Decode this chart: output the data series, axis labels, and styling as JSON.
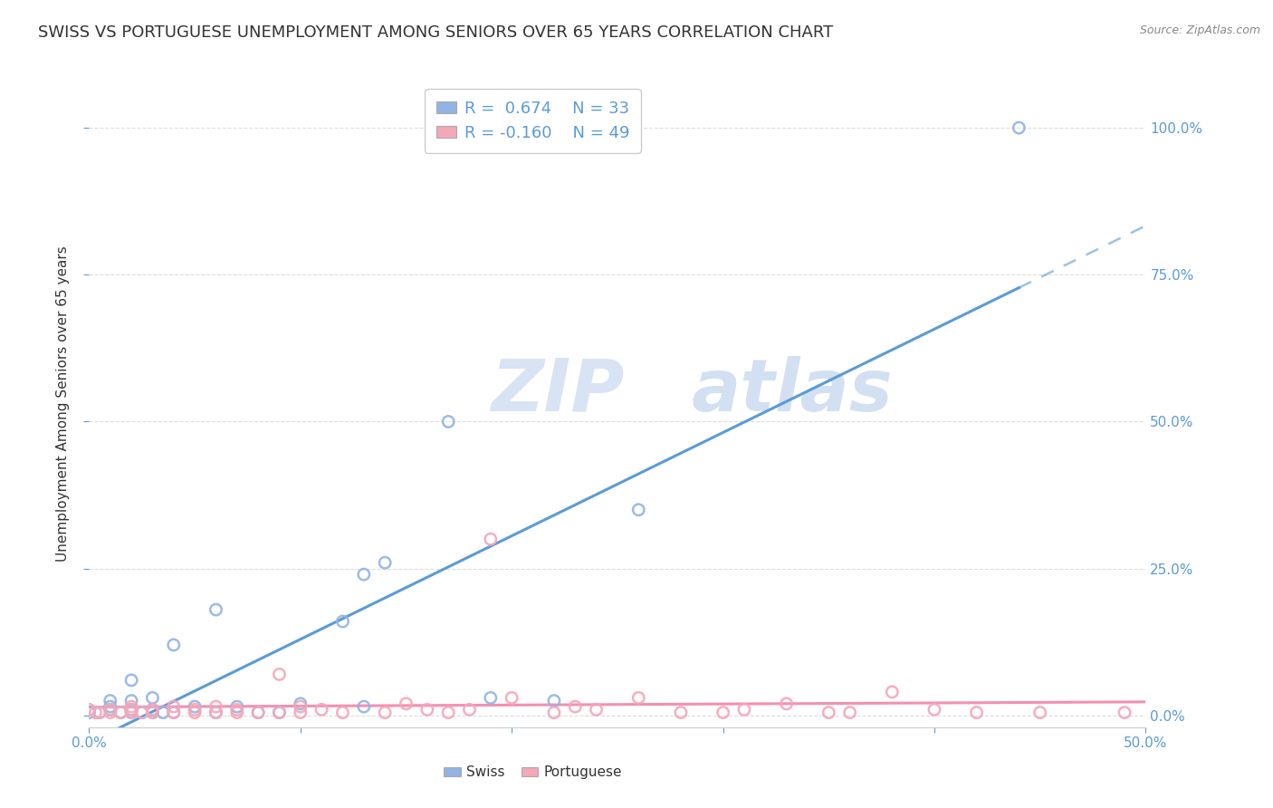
{
  "title": "SWISS VS PORTUGUESE UNEMPLOYMENT AMONG SENIORS OVER 65 YEARS CORRELATION CHART",
  "source": "Source: ZipAtlas.com",
  "ylabel": "Unemployment Among Seniors over 65 years",
  "xlim": [
    0.0,
    0.5
  ],
  "ylim": [
    -0.02,
    1.08
  ],
  "xtick_positions": [
    0.0,
    0.1,
    0.2,
    0.3,
    0.4,
    0.5
  ],
  "xticklabels_show": {
    "0.0": "0.0%",
    "0.50": "50.0%"
  },
  "ytick_positions": [
    0.0,
    0.25,
    0.5,
    0.75,
    1.0
  ],
  "yticklabels": [
    "0.0%",
    "25.0%",
    "50.0%",
    "75.0%",
    "100.0%"
  ],
  "swiss_color": "#92b4e3",
  "portuguese_color": "#f4a7b9",
  "swiss_R": 0.674,
  "swiss_N": 33,
  "portuguese_R": -0.16,
  "portuguese_N": 49,
  "swiss_line_color": "#5b9bd5",
  "portuguese_line_color": "#f48fb1",
  "swiss_points_x": [
    0.0,
    0.005,
    0.01,
    0.01,
    0.01,
    0.015,
    0.02,
    0.02,
    0.02,
    0.02,
    0.025,
    0.03,
    0.03,
    0.03,
    0.035,
    0.04,
    0.04,
    0.05,
    0.06,
    0.06,
    0.07,
    0.08,
    0.09,
    0.1,
    0.12,
    0.13,
    0.13,
    0.14,
    0.17,
    0.19,
    0.22,
    0.26,
    0.44
  ],
  "swiss_points_y": [
    0.005,
    0.005,
    0.01,
    0.015,
    0.025,
    0.005,
    0.005,
    0.01,
    0.025,
    0.06,
    0.005,
    0.005,
    0.01,
    0.03,
    0.005,
    0.005,
    0.12,
    0.015,
    0.005,
    0.18,
    0.015,
    0.005,
    0.005,
    0.02,
    0.16,
    0.015,
    0.24,
    0.26,
    0.5,
    0.03,
    0.025,
    0.35,
    1.0
  ],
  "portuguese_points_x": [
    0.0,
    0.003,
    0.005,
    0.01,
    0.01,
    0.015,
    0.02,
    0.02,
    0.02,
    0.025,
    0.03,
    0.03,
    0.04,
    0.04,
    0.05,
    0.05,
    0.06,
    0.06,
    0.07,
    0.07,
    0.08,
    0.09,
    0.09,
    0.1,
    0.1,
    0.11,
    0.12,
    0.14,
    0.15,
    0.16,
    0.17,
    0.18,
    0.19,
    0.2,
    0.22,
    0.23,
    0.24,
    0.26,
    0.28,
    0.3,
    0.31,
    0.33,
    0.35,
    0.36,
    0.38,
    0.4,
    0.42,
    0.45,
    0.49
  ],
  "portuguese_points_y": [
    0.01,
    0.005,
    0.005,
    0.005,
    0.01,
    0.005,
    0.005,
    0.01,
    0.015,
    0.005,
    0.005,
    0.01,
    0.005,
    0.015,
    0.005,
    0.01,
    0.005,
    0.015,
    0.005,
    0.01,
    0.005,
    0.005,
    0.07,
    0.005,
    0.015,
    0.01,
    0.005,
    0.005,
    0.02,
    0.01,
    0.005,
    0.01,
    0.3,
    0.03,
    0.005,
    0.015,
    0.01,
    0.03,
    0.005,
    0.005,
    0.01,
    0.02,
    0.005,
    0.005,
    0.04,
    0.01,
    0.005,
    0.005,
    0.005
  ],
  "background_color": "#ffffff",
  "watermark_zip": "ZIP",
  "watermark_atlas": "atlas",
  "grid_color": "#dddddd",
  "title_fontsize": 13,
  "axis_label_fontsize": 11,
  "tick_fontsize": 11,
  "legend_fontsize": 13
}
